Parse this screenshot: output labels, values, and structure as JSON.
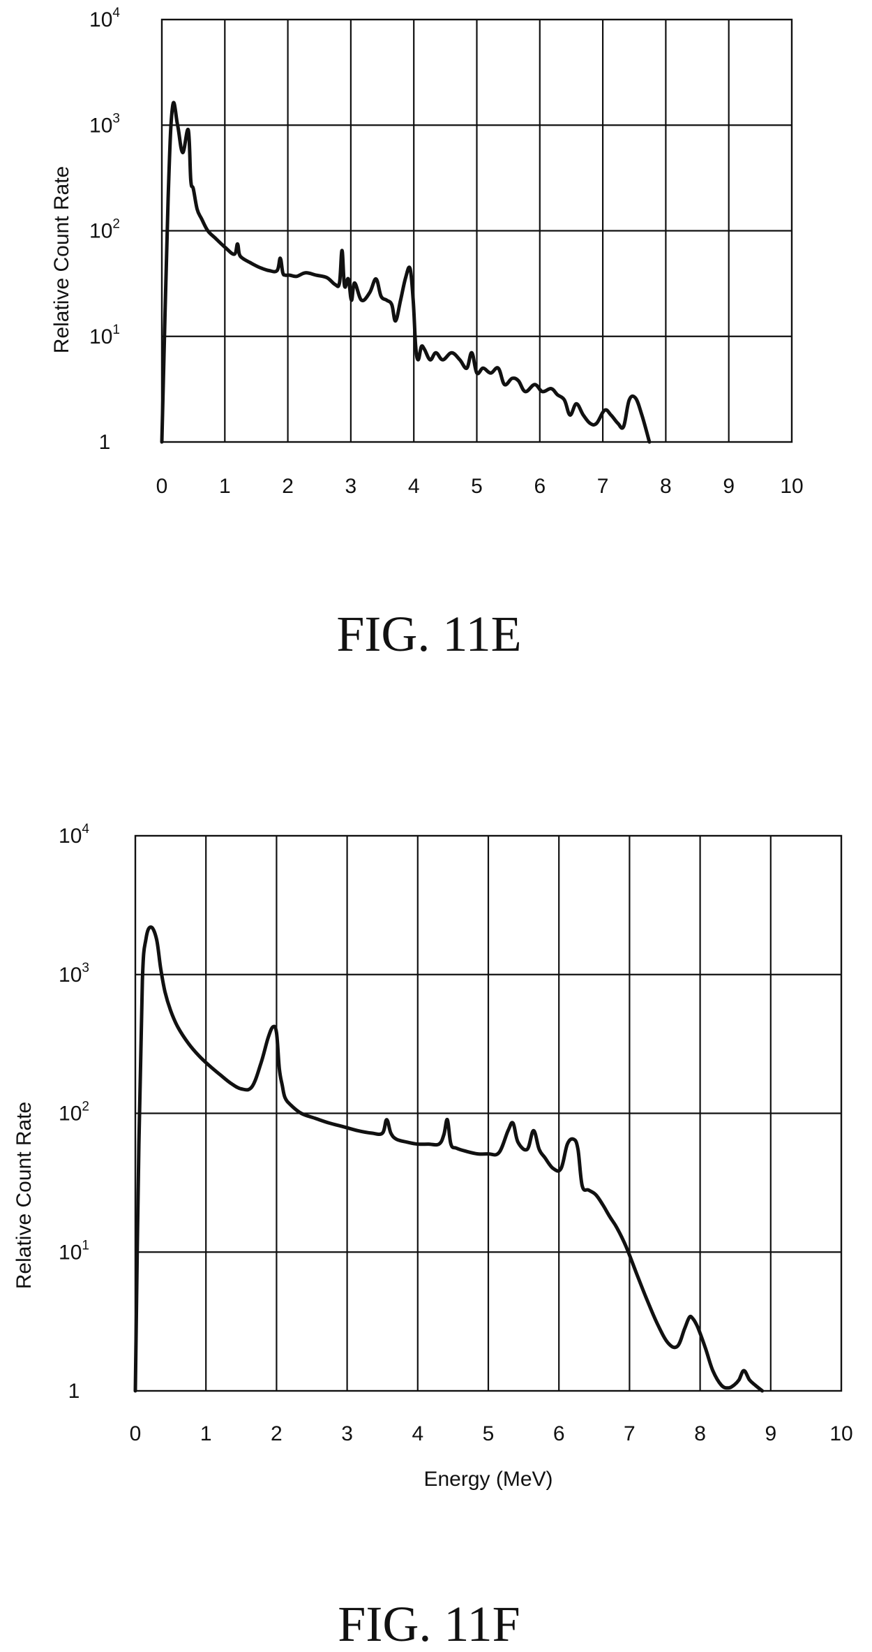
{
  "chart_data": [
    {
      "type": "line",
      "figure_label": "FIG. 11E",
      "xlabel": "",
      "ylabel": "Relative Count Rate",
      "y_scale": "log",
      "xlim": [
        0,
        10
      ],
      "ylim": [
        1,
        10000
      ],
      "grid": true,
      "x_ticks": [
        "0",
        "1",
        "2",
        "3",
        "4",
        "5",
        "6",
        "7",
        "8",
        "9",
        "10"
      ],
      "y_ticks": [
        {
          "base": "10",
          "exp": "4"
        },
        {
          "base": "10",
          "exp": "3"
        },
        {
          "base": "10",
          "exp": "2"
        },
        {
          "base": "10",
          "exp": "1"
        },
        {
          "base": "1",
          "exp": ""
        }
      ],
      "series": [
        {
          "x": [
            0.0,
            0.1,
            0.17,
            0.25,
            0.33,
            0.42,
            0.46,
            0.5,
            0.56,
            0.63,
            0.73,
            0.85,
            1.0,
            1.15,
            1.2,
            1.23,
            1.28,
            1.4,
            1.55,
            1.7,
            1.83,
            1.88,
            1.92,
            1.96,
            2.03,
            2.14,
            2.28,
            2.45,
            2.62,
            2.75,
            2.82,
            2.86,
            2.9,
            2.96,
            3.01,
            3.06,
            3.17,
            3.3,
            3.4,
            3.48,
            3.57,
            3.65,
            3.71,
            3.79,
            3.87,
            3.94,
            3.99,
            4.03,
            4.07,
            4.12,
            4.17,
            4.26,
            4.35,
            4.46,
            4.6,
            4.73,
            4.84,
            4.92,
            5.0,
            5.1,
            5.22,
            5.34,
            5.44,
            5.56,
            5.66,
            5.77,
            5.92,
            6.04,
            6.18,
            6.28,
            6.39,
            6.48,
            6.58,
            6.69,
            6.8,
            6.9,
            7.03,
            7.13,
            7.24,
            7.33,
            7.42,
            7.52,
            7.62,
            7.74
          ],
          "y": [
            1.0,
            200,
            1500,
            1000,
            550,
            900,
            300,
            250,
            160,
            130,
            100,
            85,
            70,
            60,
            75,
            60,
            55,
            50,
            45,
            42,
            42,
            55,
            40,
            38,
            38,
            37,
            40,
            38,
            36,
            31,
            32,
            65,
            30,
            35,
            22,
            32,
            22,
            26,
            35,
            24,
            22,
            20,
            14,
            22,
            36,
            44,
            22,
            8,
            6,
            8,
            7.5,
            6,
            7,
            6,
            7,
            6,
            5,
            7,
            4.5,
            5,
            4.5,
            5,
            3.5,
            4,
            3.8,
            3,
            3.5,
            3,
            3.2,
            2.8,
            2.5,
            1.8,
            2.3,
            1.8,
            1.5,
            1.5,
            2,
            1.8,
            1.5,
            1.4,
            2.5,
            2.6,
            1.8,
            1.0
          ]
        }
      ]
    },
    {
      "type": "line",
      "figure_label": "FIG. 11F",
      "xlabel": "Energy (MeV)",
      "ylabel": "Relative Count Rate",
      "y_scale": "log",
      "xlim": [
        0,
        10
      ],
      "ylim": [
        1,
        10000
      ],
      "grid": true,
      "x_ticks": [
        "0",
        "1",
        "2",
        "3",
        "4",
        "5",
        "6",
        "7",
        "8",
        "9",
        "10"
      ],
      "y_ticks": [
        {
          "base": "10",
          "exp": "4"
        },
        {
          "base": "10",
          "exp": "3"
        },
        {
          "base": "10",
          "exp": "2"
        },
        {
          "base": "10",
          "exp": "1"
        },
        {
          "base": "1",
          "exp": ""
        }
      ],
      "series": [
        {
          "x": [
            0.0,
            0.05,
            0.1,
            0.15,
            0.22,
            0.3,
            0.36,
            0.42,
            0.5,
            0.6,
            0.75,
            0.9,
            1.05,
            1.2,
            1.35,
            1.5,
            1.65,
            1.78,
            1.88,
            1.95,
            2.0,
            2.04,
            2.08,
            2.12,
            2.2,
            2.35,
            2.55,
            2.75,
            2.95,
            3.15,
            3.35,
            3.5,
            3.56,
            3.62,
            3.7,
            3.85,
            4.0,
            4.15,
            4.3,
            4.37,
            4.42,
            4.47,
            4.55,
            4.7,
            4.85,
            5.0,
            5.15,
            5.28,
            5.35,
            5.42,
            5.55,
            5.64,
            5.72,
            5.8,
            5.92,
            6.03,
            6.12,
            6.21,
            6.27,
            6.33,
            6.42,
            6.52,
            6.62,
            6.72,
            6.82,
            6.95,
            7.1,
            7.25,
            7.4,
            7.55,
            7.68,
            7.78,
            7.85,
            7.9,
            7.95,
            8.0,
            8.08,
            8.18,
            8.3,
            8.4,
            8.48,
            8.55,
            8.62,
            8.7,
            8.78,
            8.88
          ],
          "y": [
            1.0,
            60,
            900,
            1800,
            2200,
            1800,
            1100,
            750,
            550,
            420,
            320,
            260,
            220,
            190,
            165,
            150,
            155,
            230,
            350,
            420,
            380,
            210,
            160,
            130,
            115,
            100,
            92,
            85,
            80,
            75,
            72,
            72,
            90,
            72,
            65,
            62,
            60,
            60,
            60,
            70,
            90,
            60,
            56,
            53,
            51,
            51,
            52,
            75,
            85,
            62,
            55,
            75,
            55,
            48,
            40,
            40,
            60,
            65,
            55,
            30,
            28,
            26,
            22,
            18,
            15,
            11,
            7,
            4.5,
            3,
            2.2,
            2.1,
            2.8,
            3.4,
            3.3,
            3,
            2.6,
            2,
            1.4,
            1.1,
            1.05,
            1.1,
            1.2,
            1.4,
            1.2,
            1.1,
            1.0
          ]
        }
      ]
    }
  ]
}
